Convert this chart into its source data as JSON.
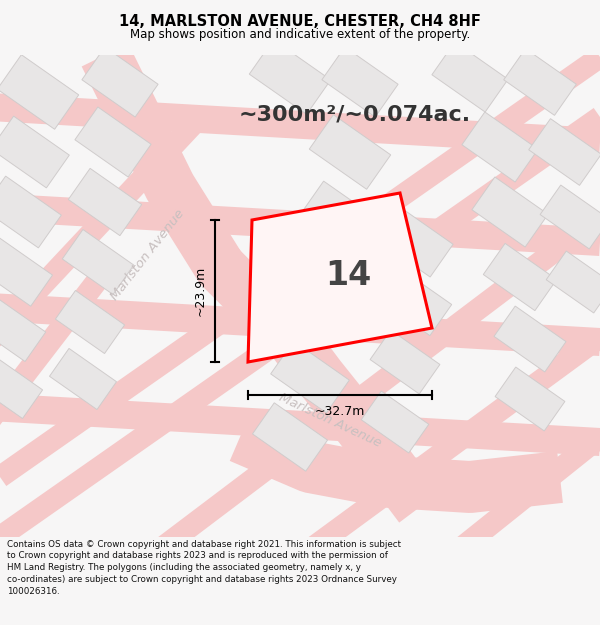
{
  "title": "14, MARLSTON AVENUE, CHESTER, CH4 8HF",
  "subtitle": "Map shows position and indicative extent of the property.",
  "area_text": "~300m²/~0.074ac.",
  "house_number": "14",
  "dim_width": "~32.7m",
  "dim_height": "~23.9m",
  "footer": "Contains OS data © Crown copyright and database right 2021. This information is subject to Crown copyright and database rights 2023 and is reproduced with the permission of HM Land Registry. The polygons (including the associated geometry, namely x, y co-ordinates) are subject to Crown copyright and database rights 2023 Ordnance Survey 100026316.",
  "bg_color": "#f7f6f6",
  "map_bg": "#f2f0f0",
  "road_color": "#f5c8c8",
  "road_outline": "#ebb8b8",
  "building_color": "#e8e6e6",
  "building_outline": "#d0cccc",
  "plot_color": "#ff0000",
  "street_label_color": "#c8c0c0",
  "title_color": "#000000",
  "footer_color": "#111111",
  "dim_color": "#000000",
  "number_color": "#444444"
}
